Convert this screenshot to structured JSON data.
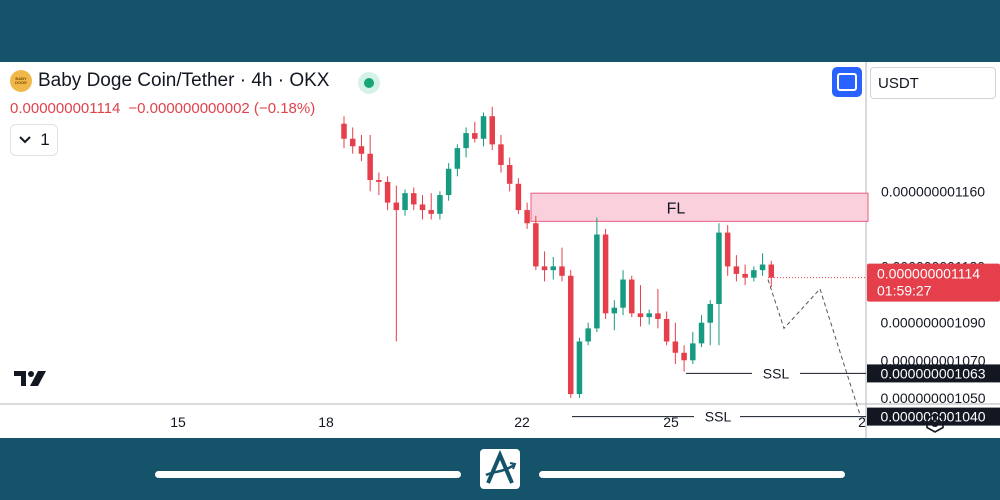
{
  "header": {
    "coin_icon_text": "BABY DOGE",
    "title": "Baby Doge Coin/Tether · 4h · OKX",
    "last_price": "0.000000001114",
    "change": "−0.000000000002 (−0.18%)",
    "interval_value": "1",
    "currency": "USDT"
  },
  "colors": {
    "up": "#169a80",
    "down": "#e43f4a",
    "fl_zone_fill": "#fbd0dd",
    "fl_zone_stroke": "#e3607f",
    "accent": "#2962ff",
    "frame": "#14536a"
  },
  "icons": {
    "interval": "chevron-down-icon",
    "fullscreen": "fullscreen-icon",
    "settings": "settings-icon",
    "logo": "tradingview-logo",
    "footer_logo": "a-logo-icon"
  },
  "chart_data": {
    "type": "candlestick",
    "y_axis_labels": [
      "0.000000001160",
      "0.000000001120",
      "0.000000001090",
      "0.000000001070",
      "0.000000001050"
    ],
    "y_ticks": [
      1160,
      1120,
      1090,
      1070,
      1050
    ],
    "y_unit_note": "values in units of 1e-12 USDT",
    "ylim": [
      1030,
      1190
    ],
    "x_axis_labels": [
      "15",
      "18",
      "22",
      "25",
      "2"
    ],
    "current_price": {
      "label": "0.000000001114",
      "countdown": "01:59:27",
      "value": 1114
    },
    "levels": [
      {
        "label": "0.000000001063",
        "value": 1063
      },
      {
        "label": "0.000000001040",
        "value": 1040
      }
    ],
    "zones": [
      {
        "label": "FL",
        "from": 1144,
        "to": 1159
      }
    ],
    "annotations": [
      {
        "text": "SSL",
        "value": 1063
      },
      {
        "text": "SSL",
        "value": 1040
      }
    ],
    "projection": [
      1113,
      1087,
      1108,
      1041
    ],
    "candles": [
      {
        "o": 1196,
        "h": 1200,
        "l": 1183,
        "c": 1188
      },
      {
        "o": 1188,
        "h": 1194,
        "l": 1180,
        "c": 1184
      },
      {
        "o": 1184,
        "h": 1190,
        "l": 1176,
        "c": 1180
      },
      {
        "o": 1180,
        "h": 1190,
        "l": 1160,
        "c": 1166
      },
      {
        "o": 1166,
        "h": 1170,
        "l": 1158,
        "c": 1165
      },
      {
        "o": 1165,
        "h": 1168,
        "l": 1150,
        "c": 1154
      },
      {
        "o": 1154,
        "h": 1163,
        "l": 1080,
        "c": 1150
      },
      {
        "o": 1150,
        "h": 1161,
        "l": 1147,
        "c": 1159
      },
      {
        "o": 1159,
        "h": 1162,
        "l": 1150,
        "c": 1153
      },
      {
        "o": 1153,
        "h": 1158,
        "l": 1145,
        "c": 1150
      },
      {
        "o": 1150,
        "h": 1159,
        "l": 1145,
        "c": 1148
      },
      {
        "o": 1148,
        "h": 1160,
        "l": 1145,
        "c": 1158
      },
      {
        "o": 1158,
        "h": 1175,
        "l": 1155,
        "c": 1172
      },
      {
        "o": 1172,
        "h": 1185,
        "l": 1168,
        "c": 1183
      },
      {
        "o": 1183,
        "h": 1194,
        "l": 1178,
        "c": 1191
      },
      {
        "o": 1191,
        "h": 1197,
        "l": 1186,
        "c": 1188
      },
      {
        "o": 1188,
        "h": 1202,
        "l": 1184,
        "c": 1200
      },
      {
        "o": 1200,
        "h": 1205,
        "l": 1182,
        "c": 1185
      },
      {
        "o": 1185,
        "h": 1190,
        "l": 1170,
        "c": 1174
      },
      {
        "o": 1174,
        "h": 1178,
        "l": 1160,
        "c": 1164
      },
      {
        "o": 1164,
        "h": 1167,
        "l": 1148,
        "c": 1150
      },
      {
        "o": 1150,
        "h": 1154,
        "l": 1140,
        "c": 1143
      },
      {
        "o": 1143,
        "h": 1147,
        "l": 1118,
        "c": 1120
      },
      {
        "o": 1120,
        "h": 1128,
        "l": 1112,
        "c": 1118
      },
      {
        "o": 1118,
        "h": 1125,
        "l": 1113,
        "c": 1120
      },
      {
        "o": 1120,
        "h": 1130,
        "l": 1112,
        "c": 1115
      },
      {
        "o": 1115,
        "h": 1118,
        "l": 1050,
        "c": 1052
      },
      {
        "o": 1052,
        "h": 1082,
        "l": 1050,
        "c": 1080
      },
      {
        "o": 1080,
        "h": 1090,
        "l": 1078,
        "c": 1087
      },
      {
        "o": 1087,
        "h": 1146,
        "l": 1085,
        "c": 1137
      },
      {
        "o": 1137,
        "h": 1140,
        "l": 1092,
        "c": 1095
      },
      {
        "o": 1095,
        "h": 1102,
        "l": 1086,
        "c": 1098
      },
      {
        "o": 1098,
        "h": 1118,
        "l": 1094,
        "c": 1113
      },
      {
        "o": 1113,
        "h": 1115,
        "l": 1093,
        "c": 1095
      },
      {
        "o": 1095,
        "h": 1110,
        "l": 1088,
        "c": 1093
      },
      {
        "o": 1093,
        "h": 1097,
        "l": 1089,
        "c": 1095
      },
      {
        "o": 1095,
        "h": 1108,
        "l": 1087,
        "c": 1092
      },
      {
        "o": 1092,
        "h": 1096,
        "l": 1078,
        "c": 1080
      },
      {
        "o": 1080,
        "h": 1090,
        "l": 1068,
        "c": 1074
      },
      {
        "o": 1074,
        "h": 1078,
        "l": 1064,
        "c": 1070
      },
      {
        "o": 1070,
        "h": 1085,
        "l": 1068,
        "c": 1079
      },
      {
        "o": 1079,
        "h": 1094,
        "l": 1077,
        "c": 1090
      },
      {
        "o": 1090,
        "h": 1102,
        "l": 1078,
        "c": 1100
      },
      {
        "o": 1100,
        "h": 1143,
        "l": 1078,
        "c": 1138
      },
      {
        "o": 1138,
        "h": 1142,
        "l": 1115,
        "c": 1120
      },
      {
        "o": 1120,
        "h": 1126,
        "l": 1112,
        "c": 1116
      },
      {
        "o": 1116,
        "h": 1121,
        "l": 1110,
        "c": 1114
      },
      {
        "o": 1114,
        "h": 1120,
        "l": 1112,
        "c": 1118
      },
      {
        "o": 1118,
        "h": 1127,
        "l": 1115,
        "c": 1121
      },
      {
        "o": 1121,
        "h": 1123,
        "l": 1109,
        "c": 1114
      }
    ]
  }
}
